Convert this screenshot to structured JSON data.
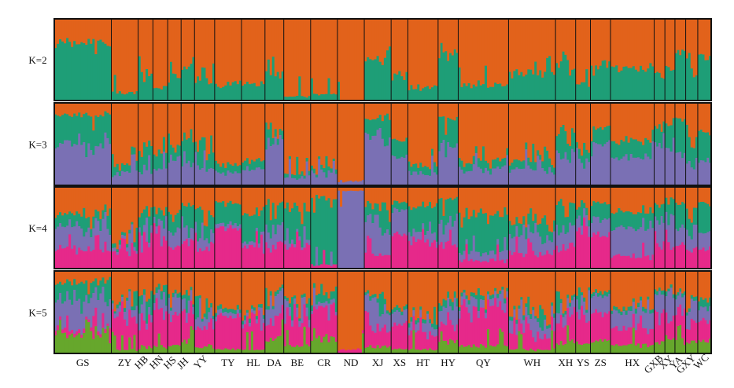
{
  "chart_data": {
    "type": "bar",
    "subtype": "stacked-structure-admixture",
    "title": "",
    "xlabel": "",
    "ylabel": "",
    "ylim": [
      0,
      1
    ],
    "grid": false,
    "legend": "none",
    "colors": {
      "orange": "#E2621B",
      "green": "#1E9E77",
      "purple": "#7A70B4",
      "magenta": "#E6298A",
      "lime": "#66A72C"
    },
    "populations": [
      {
        "label": "GS",
        "size": 0.85
      },
      {
        "label": "ZY",
        "size": 0.4
      },
      {
        "label": "HB",
        "size": 0.22
      },
      {
        "label": "HN",
        "size": 0.22
      },
      {
        "label": "HS",
        "size": 0.2
      },
      {
        "label": "JH",
        "size": 0.2
      },
      {
        "label": "YY",
        "size": 0.3
      },
      {
        "label": "TY",
        "size": 0.4
      },
      {
        "label": "HL",
        "size": 0.35
      },
      {
        "label": "DA",
        "size": 0.28
      },
      {
        "label": "BE",
        "size": 0.4
      },
      {
        "label": "CR",
        "size": 0.4
      },
      {
        "label": "ND",
        "size": 0.4
      },
      {
        "label": "XJ",
        "size": 0.4
      },
      {
        "label": "XS",
        "size": 0.25
      },
      {
        "label": "HT",
        "size": 0.45
      },
      {
        "label": "HY",
        "size": 0.3
      },
      {
        "label": "QY",
        "size": 0.75
      },
      {
        "label": "WH",
        "size": 0.7
      },
      {
        "label": "XH",
        "size": 0.3
      },
      {
        "label": "YS",
        "size": 0.22
      },
      {
        "label": "ZS",
        "size": 0.3
      },
      {
        "label": "HX",
        "size": 0.65
      },
      {
        "label": "GXB",
        "size": 0.16
      },
      {
        "label": "XY",
        "size": 0.15
      },
      {
        "label": "YA",
        "size": 0.16
      },
      {
        "label": "GXY",
        "size": 0.18
      },
      {
        "label": "WC",
        "size": 0.2
      }
    ],
    "panels": [
      {
        "label": "K=2",
        "k": 2,
        "proportions": [
          [
            0.3,
            0.7
          ],
          [
            0.9,
            0.1
          ],
          [
            0.65,
            0.35
          ],
          [
            0.85,
            0.15
          ],
          [
            0.7,
            0.3
          ],
          [
            0.6,
            0.4
          ],
          [
            0.75,
            0.25
          ],
          [
            0.8,
            0.2
          ],
          [
            0.8,
            0.2
          ],
          [
            0.65,
            0.35
          ],
          [
            0.95,
            0.05
          ],
          [
            0.92,
            0.08
          ],
          [
            1.0,
            0.0
          ],
          [
            0.5,
            0.5
          ],
          [
            0.7,
            0.3
          ],
          [
            0.85,
            0.15
          ],
          [
            0.4,
            0.6
          ],
          [
            0.8,
            0.2
          ],
          [
            0.65,
            0.35
          ],
          [
            0.55,
            0.45
          ],
          [
            0.8,
            0.2
          ],
          [
            0.55,
            0.45
          ],
          [
            0.6,
            0.4
          ],
          [
            0.7,
            0.3
          ],
          [
            0.6,
            0.4
          ],
          [
            0.4,
            0.6
          ],
          [
            0.6,
            0.4
          ],
          [
            0.45,
            0.55
          ]
        ]
      },
      {
        "label": "K=3",
        "k": 3,
        "proportions": [
          [
            0.15,
            0.35,
            0.5
          ],
          [
            0.75,
            0.1,
            0.15
          ],
          [
            0.55,
            0.25,
            0.2
          ],
          [
            0.6,
            0.2,
            0.2
          ],
          [
            0.5,
            0.15,
            0.35
          ],
          [
            0.45,
            0.3,
            0.25
          ],
          [
            0.55,
            0.2,
            0.25
          ],
          [
            0.75,
            0.1,
            0.15
          ],
          [
            0.7,
            0.1,
            0.2
          ],
          [
            0.3,
            0.1,
            0.6
          ],
          [
            0.85,
            0.05,
            0.1
          ],
          [
            0.8,
            0.05,
            0.15
          ],
          [
            0.95,
            0.0,
            0.05
          ],
          [
            0.2,
            0.2,
            0.6
          ],
          [
            0.45,
            0.2,
            0.35
          ],
          [
            0.75,
            0.1,
            0.15
          ],
          [
            0.2,
            0.3,
            0.5
          ],
          [
            0.7,
            0.1,
            0.2
          ],
          [
            0.7,
            0.1,
            0.2
          ],
          [
            0.35,
            0.25,
            0.4
          ],
          [
            0.6,
            0.1,
            0.3
          ],
          [
            0.3,
            0.2,
            0.5
          ],
          [
            0.45,
            0.2,
            0.35
          ],
          [
            0.3,
            0.2,
            0.5
          ],
          [
            0.25,
            0.3,
            0.45
          ],
          [
            0.2,
            0.4,
            0.4
          ],
          [
            0.4,
            0.3,
            0.3
          ],
          [
            0.35,
            0.35,
            0.3
          ]
        ]
      },
      {
        "label": "K=4",
        "k": 4,
        "proportions": [
          [
            0.35,
            0.15,
            0.25,
            0.25
          ],
          [
            0.7,
            0.05,
            0.05,
            0.2
          ],
          [
            0.3,
            0.2,
            0.1,
            0.4
          ],
          [
            0.35,
            0.15,
            0.1,
            0.4
          ],
          [
            0.3,
            0.2,
            0.2,
            0.3
          ],
          [
            0.25,
            0.25,
            0.15,
            0.35
          ],
          [
            0.35,
            0.2,
            0.15,
            0.3
          ],
          [
            0.2,
            0.25,
            0.05,
            0.5
          ],
          [
            0.35,
            0.35,
            0.05,
            0.25
          ],
          [
            0.2,
            0.25,
            0.25,
            0.3
          ],
          [
            0.3,
            0.35,
            0.05,
            0.3
          ],
          [
            0.15,
            0.8,
            0.0,
            0.05
          ],
          [
            0.05,
            0.0,
            0.95,
            0.0
          ],
          [
            0.25,
            0.2,
            0.35,
            0.2
          ],
          [
            0.2,
            0.1,
            0.3,
            0.4
          ],
          [
            0.25,
            0.3,
            0.1,
            0.35
          ],
          [
            0.15,
            0.3,
            0.25,
            0.3
          ],
          [
            0.35,
            0.45,
            0.1,
            0.1
          ],
          [
            0.45,
            0.15,
            0.2,
            0.2
          ],
          [
            0.2,
            0.25,
            0.25,
            0.3
          ],
          [
            0.25,
            0.1,
            0.15,
            0.5
          ],
          [
            0.2,
            0.2,
            0.2,
            0.4
          ],
          [
            0.3,
            0.2,
            0.35,
            0.15
          ],
          [
            0.25,
            0.2,
            0.25,
            0.3
          ],
          [
            0.2,
            0.25,
            0.25,
            0.3
          ],
          [
            0.2,
            0.3,
            0.2,
            0.3
          ],
          [
            0.25,
            0.25,
            0.25,
            0.25
          ],
          [
            0.2,
            0.35,
            0.2,
            0.25
          ]
        ]
      },
      {
        "label": "K=5",
        "k": 5,
        "proportions": [
          [
            0.15,
            0.2,
            0.35,
            0.05,
            0.25
          ],
          [
            0.45,
            0.05,
            0.1,
            0.35,
            0.05
          ],
          [
            0.3,
            0.1,
            0.1,
            0.4,
            0.1
          ],
          [
            0.25,
            0.1,
            0.1,
            0.45,
            0.1
          ],
          [
            0.25,
            0.05,
            0.2,
            0.4,
            0.1
          ],
          [
            0.3,
            0.05,
            0.15,
            0.35,
            0.15
          ],
          [
            0.4,
            0.05,
            0.15,
            0.3,
            0.1
          ],
          [
            0.45,
            0.05,
            0.05,
            0.4,
            0.05
          ],
          [
            0.55,
            0.05,
            0.05,
            0.3,
            0.05
          ],
          [
            0.25,
            0.05,
            0.25,
            0.25,
            0.2
          ],
          [
            0.4,
            0.05,
            0.1,
            0.35,
            0.1
          ],
          [
            0.25,
            0.1,
            0.05,
            0.4,
            0.2
          ],
          [
            0.95,
            0.0,
            0.0,
            0.05,
            0.0
          ],
          [
            0.35,
            0.05,
            0.25,
            0.25,
            0.1
          ],
          [
            0.45,
            0.05,
            0.15,
            0.3,
            0.05
          ],
          [
            0.6,
            0.05,
            0.1,
            0.2,
            0.05
          ],
          [
            0.35,
            0.1,
            0.2,
            0.2,
            0.15
          ],
          [
            0.3,
            0.05,
            0.1,
            0.45,
            0.1
          ],
          [
            0.55,
            0.05,
            0.15,
            0.2,
            0.05
          ],
          [
            0.35,
            0.05,
            0.15,
            0.3,
            0.15
          ],
          [
            0.3,
            0.05,
            0.15,
            0.35,
            0.15
          ],
          [
            0.25,
            0.05,
            0.2,
            0.35,
            0.15
          ],
          [
            0.45,
            0.05,
            0.2,
            0.2,
            0.1
          ],
          [
            0.25,
            0.05,
            0.2,
            0.35,
            0.15
          ],
          [
            0.25,
            0.05,
            0.2,
            0.3,
            0.2
          ],
          [
            0.3,
            0.05,
            0.2,
            0.3,
            0.15
          ],
          [
            0.3,
            0.05,
            0.25,
            0.25,
            0.15
          ],
          [
            0.35,
            0.1,
            0.15,
            0.25,
            0.15
          ]
        ]
      }
    ]
  }
}
